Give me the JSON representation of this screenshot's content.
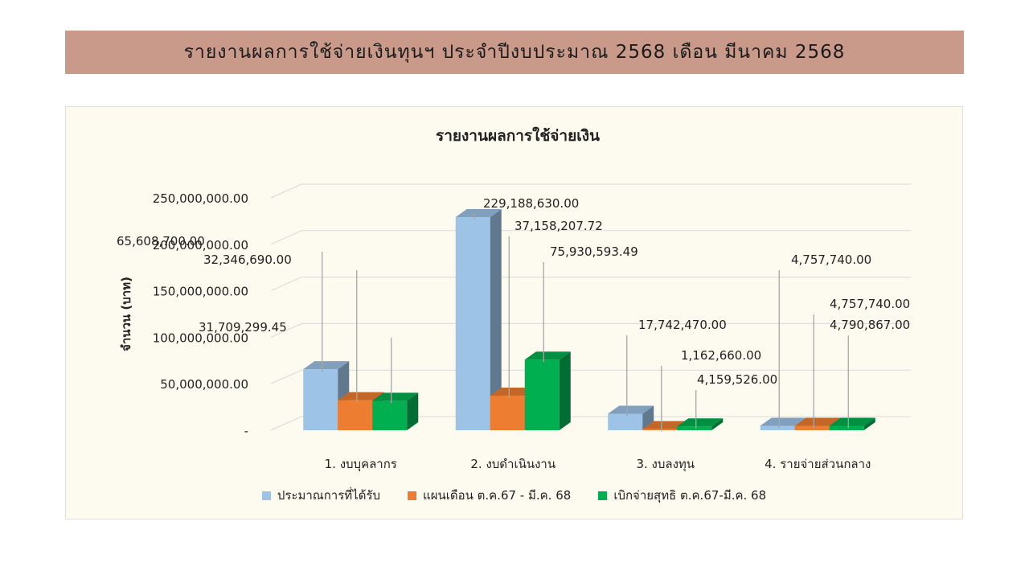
{
  "banner": {
    "title": "รายงานผลการใช้จ่ายเงินทุนฯ  ประจำปีงบประมาณ  2568 เดือน  มีนาคม  2568"
  },
  "chart_data": {
    "type": "bar",
    "style": "3d-clustered-column",
    "title": "รายงานผลการใช้จ่ายเงิน",
    "xlabel": "",
    "ylabel": "จำนวน (บาท)",
    "ylim": [
      0,
      250000000
    ],
    "yticks": [
      0,
      50000000,
      100000000,
      150000000,
      200000000,
      250000000
    ],
    "ytick_labels": [
      "-",
      "50,000,000.00",
      "100,000,000.00",
      "150,000,000.00",
      "200,000,000.00",
      "250,000,000.00"
    ],
    "grid": true,
    "legend_position": "bottom",
    "categories": [
      "1. งบบุคลากร",
      "2. งบดำเนินงาน",
      "3. งบลงทุน",
      "4. รายจ่ายส่วนกลาง"
    ],
    "series": [
      {
        "name": "ประมาณการที่ได้รับ",
        "color": "#9dc3e6",
        "values": [
          65608700.0,
          229188630.0,
          17742470.0,
          4757740.0
        ],
        "labels": [
          "65,608,700.00",
          "229,188,630.00",
          "17,742,470.00",
          "4,757,740.00"
        ]
      },
      {
        "name": "แผนเดือน ต.ค.67 - มี.ค. 68",
        "color": "#ed7d31",
        "values": [
          32346690.0,
          37158207.72,
          1162660.0,
          4757740.0
        ],
        "labels": [
          "32,346,690.00",
          "37,158,207.72",
          "1,162,660.00",
          "4,757,740.00"
        ]
      },
      {
        "name": "เบิกจ่ายสุทธิ ต.ค.67-มี.ค. 68",
        "color": "#00b050",
        "values": [
          31709299.45,
          75930593.49,
          4159526.0,
          4790867.0
        ],
        "labels": [
          "31,709,299.45",
          "75,930,593.49",
          "4,159,526.00",
          "4,790,867.00"
        ]
      }
    ]
  }
}
